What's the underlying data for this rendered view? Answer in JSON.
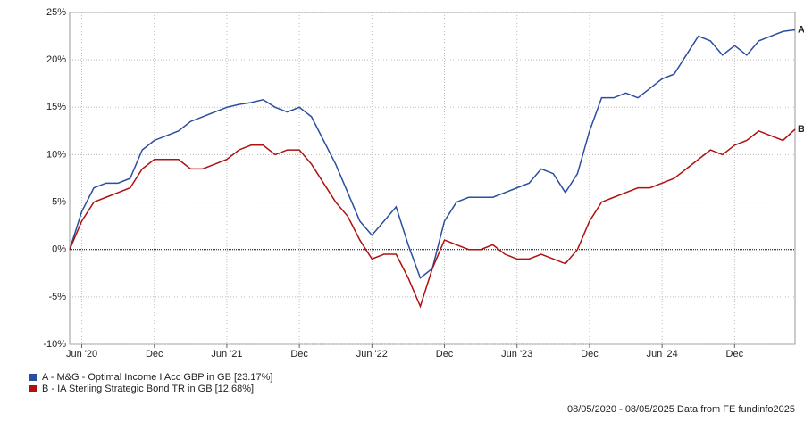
{
  "chart_data": {
    "type": "line",
    "x": [
      "2020-05",
      "2020-06",
      "2020-07",
      "2020-08",
      "2020-09",
      "2020-10",
      "2020-11",
      "2020-12",
      "2021-01",
      "2021-02",
      "2021-03",
      "2021-04",
      "2021-05",
      "2021-06",
      "2021-07",
      "2021-08",
      "2021-09",
      "2021-10",
      "2021-11",
      "2021-12",
      "2022-01",
      "2022-02",
      "2022-03",
      "2022-04",
      "2022-05",
      "2022-06",
      "2022-07",
      "2022-08",
      "2022-09",
      "2022-10",
      "2022-11",
      "2022-12",
      "2023-01",
      "2023-02",
      "2023-03",
      "2023-04",
      "2023-05",
      "2023-06",
      "2023-07",
      "2023-08",
      "2023-09",
      "2023-10",
      "2023-11",
      "2023-12",
      "2024-01",
      "2024-02",
      "2024-03",
      "2024-04",
      "2024-05",
      "2024-06",
      "2024-07",
      "2024-08",
      "2024-09",
      "2024-10",
      "2024-11",
      "2024-12",
      "2025-01",
      "2025-02",
      "2025-03",
      "2025-04",
      "2025-05"
    ],
    "series": [
      {
        "name": "A - M&G - Optimal Income I Acc GBP in GB [23.17%]",
        "end_label": "A",
        "color": "#2a4fa0",
        "values": [
          0,
          4,
          6.5,
          7,
          7,
          7.5,
          10.5,
          11.5,
          12,
          12.5,
          13.5,
          14,
          14.5,
          15,
          15.3,
          15.5,
          15.8,
          15,
          14.5,
          15,
          14,
          11.5,
          9,
          6,
          3,
          1.5,
          3,
          4.5,
          0.5,
          -3,
          -2,
          3,
          5,
          5.5,
          5.5,
          5.5,
          6,
          6.5,
          7,
          8.5,
          8,
          6,
          8,
          12.5,
          16,
          16,
          16.5,
          16,
          17,
          18,
          18.5,
          20.5,
          22.5,
          22,
          20.5,
          21.5,
          20.5,
          22,
          22.5,
          23,
          23.17
        ]
      },
      {
        "name": "B - IA Sterling Strategic Bond TR in GB [12.68%]",
        "end_label": "B",
        "color": "#b01010",
        "values": [
          0,
          3,
          5,
          5.5,
          6,
          6.5,
          8.5,
          9.5,
          9.5,
          9.5,
          8.5,
          8.5,
          9,
          9.5,
          10.5,
          11,
          11,
          10,
          10.5,
          10.5,
          9,
          7,
          5,
          3.5,
          1,
          -1,
          -0.5,
          -0.5,
          -3,
          -6,
          -2,
          1,
          0.5,
          0,
          0,
          0.5,
          -0.5,
          -1,
          -1,
          -0.5,
          -1,
          -1.5,
          0,
          3,
          5,
          5.5,
          6,
          6.5,
          6.5,
          7,
          7.5,
          8.5,
          9.5,
          10.5,
          10,
          11,
          11.5,
          12.5,
          12,
          11.5,
          12.68
        ]
      }
    ],
    "xlim": [
      "2020-05",
      "2025-05"
    ],
    "xticks": [
      {
        "value": "2020-06",
        "label": "Jun '20"
      },
      {
        "value": "2020-12",
        "label": "Dec"
      },
      {
        "value": "2021-06",
        "label": "Jun '21"
      },
      {
        "value": "2021-12",
        "label": "Dec"
      },
      {
        "value": "2022-06",
        "label": "Jun '22"
      },
      {
        "value": "2022-12",
        "label": "Dec"
      },
      {
        "value": "2023-06",
        "label": "Jun '23"
      },
      {
        "value": "2023-12",
        "label": "Dec"
      },
      {
        "value": "2024-06",
        "label": "Jun '24"
      },
      {
        "value": "2024-12",
        "label": "Dec"
      }
    ],
    "ylim": [
      -10,
      25
    ],
    "yticks": [
      {
        "value": -10,
        "label": "-10%"
      },
      {
        "value": -5,
        "label": "-5%"
      },
      {
        "value": 0,
        "label": "0%"
      },
      {
        "value": 5,
        "label": "5%"
      },
      {
        "value": 10,
        "label": "10%"
      },
      {
        "value": 15,
        "label": "15%"
      },
      {
        "value": 20,
        "label": "20%"
      },
      {
        "value": 25,
        "label": "25%"
      }
    ],
    "grid": true,
    "footer": "08/05/2020 - 08/05/2025 Data from FE fundinfo2025"
  }
}
